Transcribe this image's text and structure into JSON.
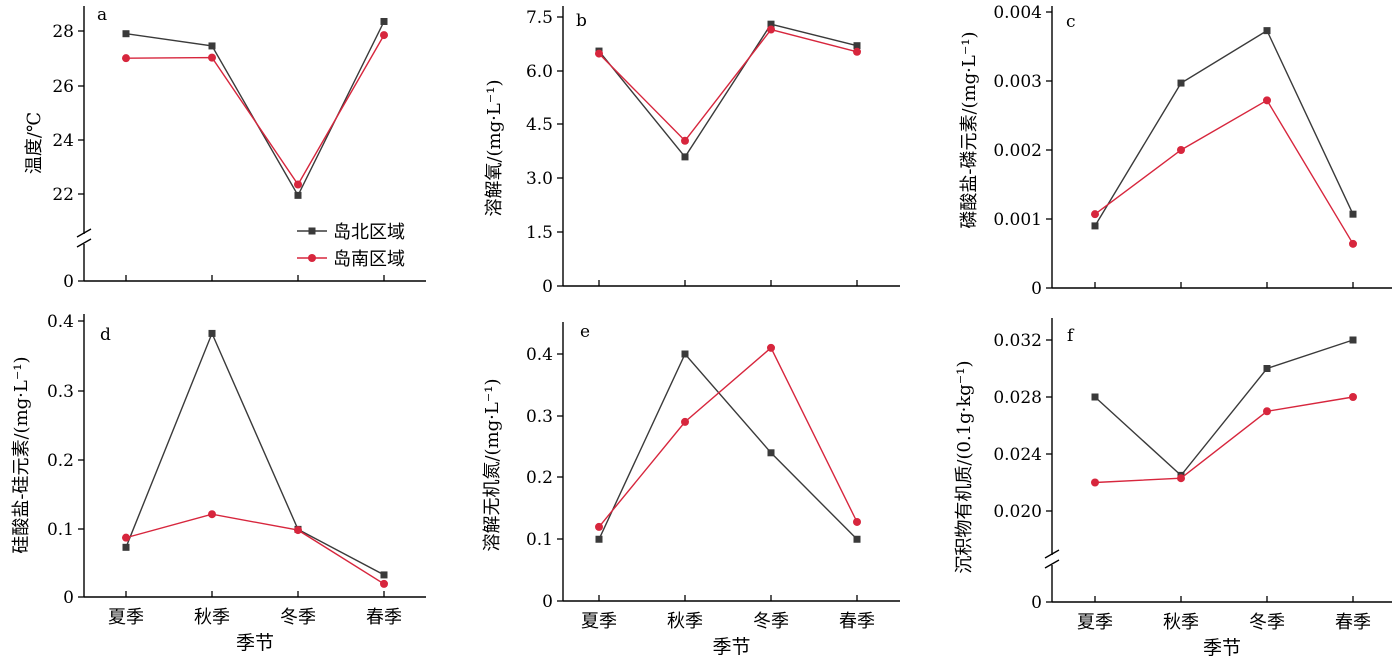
{
  "chart_data": [
    {
      "type": "line",
      "panel_label": "a",
      "ylabel": "温度/℃",
      "categories": [
        "夏季",
        "秋季",
        "冬季",
        "春季"
      ],
      "y_ticks": [
        "0",
        "22",
        "24",
        "26",
        "28"
      ],
      "axis_break": true,
      "ylim": [
        21.2,
        29
      ],
      "series": [
        {
          "name": "岛北区域",
          "values": [
            27.9,
            27.45,
            21.95,
            28.35
          ]
        },
        {
          "name": "岛南区域",
          "values": [
            27.0,
            27.02,
            22.35,
            27.85
          ]
        }
      ]
    },
    {
      "type": "line",
      "panel_label": "b",
      "ylabel": "溶解氧/(mg·L⁻¹)",
      "categories": [
        "夏季",
        "秋季",
        "冬季",
        "春季"
      ],
      "y_ticks": [
        "0",
        "1.5",
        "3.0",
        "4.5",
        "6.0",
        "7.5"
      ],
      "ylim": [
        0,
        7.5
      ],
      "series": [
        {
          "name": "岛北区域",
          "values": [
            6.55,
            3.6,
            7.3,
            6.7
          ]
        },
        {
          "name": "岛南区域",
          "values": [
            6.48,
            4.05,
            7.15,
            6.53
          ]
        }
      ]
    },
    {
      "type": "line",
      "panel_label": "c",
      "ylabel": "磷酸盐-磷元素/(mg·L⁻¹)",
      "categories": [
        "夏季",
        "秋季",
        "冬季",
        "春季"
      ],
      "y_ticks": [
        "0",
        "0.001",
        "0.002",
        "0.003",
        "0.004"
      ],
      "ylim": [
        0,
        0.004
      ],
      "series": [
        {
          "name": "岛北区域",
          "values": [
            0.0009,
            0.00297,
            0.00373,
            0.00107
          ]
        },
        {
          "name": "岛南区域",
          "values": [
            0.00107,
            0.002,
            0.00272,
            0.00064
          ]
        }
      ]
    },
    {
      "type": "line",
      "panel_label": "d",
      "ylabel": "硅酸盐-硅元素/(mg·L⁻¹)",
      "xlabel": "季节",
      "categories": [
        "夏季",
        "秋季",
        "冬季",
        "春季"
      ],
      "y_ticks": [
        "0",
        "0.1",
        "0.2",
        "0.3",
        "0.4"
      ],
      "ylim": [
        0,
        0.4
      ],
      "series": [
        {
          "name": "岛北区域",
          "values": [
            0.072,
            0.382,
            0.098,
            0.032
          ]
        },
        {
          "name": "岛南区域",
          "values": [
            0.086,
            0.12,
            0.097,
            0.019
          ]
        }
      ]
    },
    {
      "type": "line",
      "panel_label": "e",
      "ylabel": "溶解无机氮/(mg·L⁻¹)",
      "xlabel": "季节",
      "categories": [
        "夏季",
        "秋季",
        "冬季",
        "春季"
      ],
      "y_ticks": [
        "0",
        "0.1",
        "0.2",
        "0.3",
        "0.4"
      ],
      "ylim": [
        0,
        0.4
      ],
      "series": [
        {
          "name": "岛北区域",
          "values": [
            0.1,
            0.4,
            0.24,
            0.1
          ]
        },
        {
          "name": "岛南区域",
          "values": [
            0.12,
            0.29,
            0.41,
            0.128
          ]
        }
      ]
    },
    {
      "type": "line",
      "panel_label": "f",
      "ylabel": "沉积物有机质/(0.1g·kg⁻¹)",
      "xlabel": "季节",
      "categories": [
        "夏季",
        "秋季",
        "冬季",
        "春季"
      ],
      "y_ticks": [
        "0",
        "0.020",
        "0.024",
        "0.028",
        "0.032"
      ],
      "axis_break": true,
      "ylim": [
        0.0193,
        0.0333
      ],
      "series": [
        {
          "name": "岛北区域",
          "values": [
            0.028,
            0.0225,
            0.03,
            0.032
          ]
        },
        {
          "name": "岛南区域",
          "values": [
            0.022,
            0.0223,
            0.027,
            0.028
          ]
        }
      ]
    }
  ],
  "legend": {
    "items": [
      "岛北区域",
      "岛南区域"
    ],
    "placement": "panel a, lower right"
  },
  "colors": {
    "north": "#3a3a3a",
    "south": "#d7263d",
    "axis": "#000000"
  }
}
